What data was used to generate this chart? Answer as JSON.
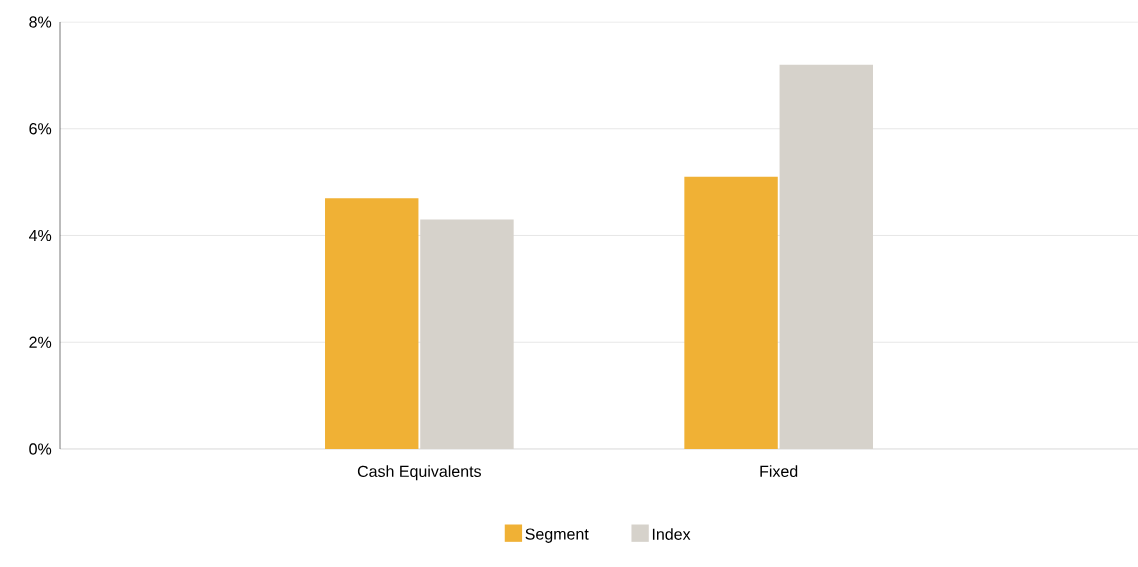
{
  "chart_data": {
    "type": "bar",
    "categories": [
      "Cash Equivalents",
      "Fixed"
    ],
    "series": [
      {
        "name": "Segment",
        "color": "#f0b135",
        "values": [
          4.7,
          5.1
        ]
      },
      {
        "name": "Index",
        "color": "#d6d2cb",
        "values": [
          4.3,
          7.2
        ]
      }
    ],
    "ylim": [
      0,
      8
    ],
    "yticks": [
      {
        "value": 0,
        "label": "0%"
      },
      {
        "value": 2,
        "label": "2%"
      },
      {
        "value": 4,
        "label": "4%"
      },
      {
        "value": 6,
        "label": "6%"
      },
      {
        "value": 8,
        "label": "8%"
      }
    ],
    "grid": "y",
    "legend": "bottom"
  }
}
